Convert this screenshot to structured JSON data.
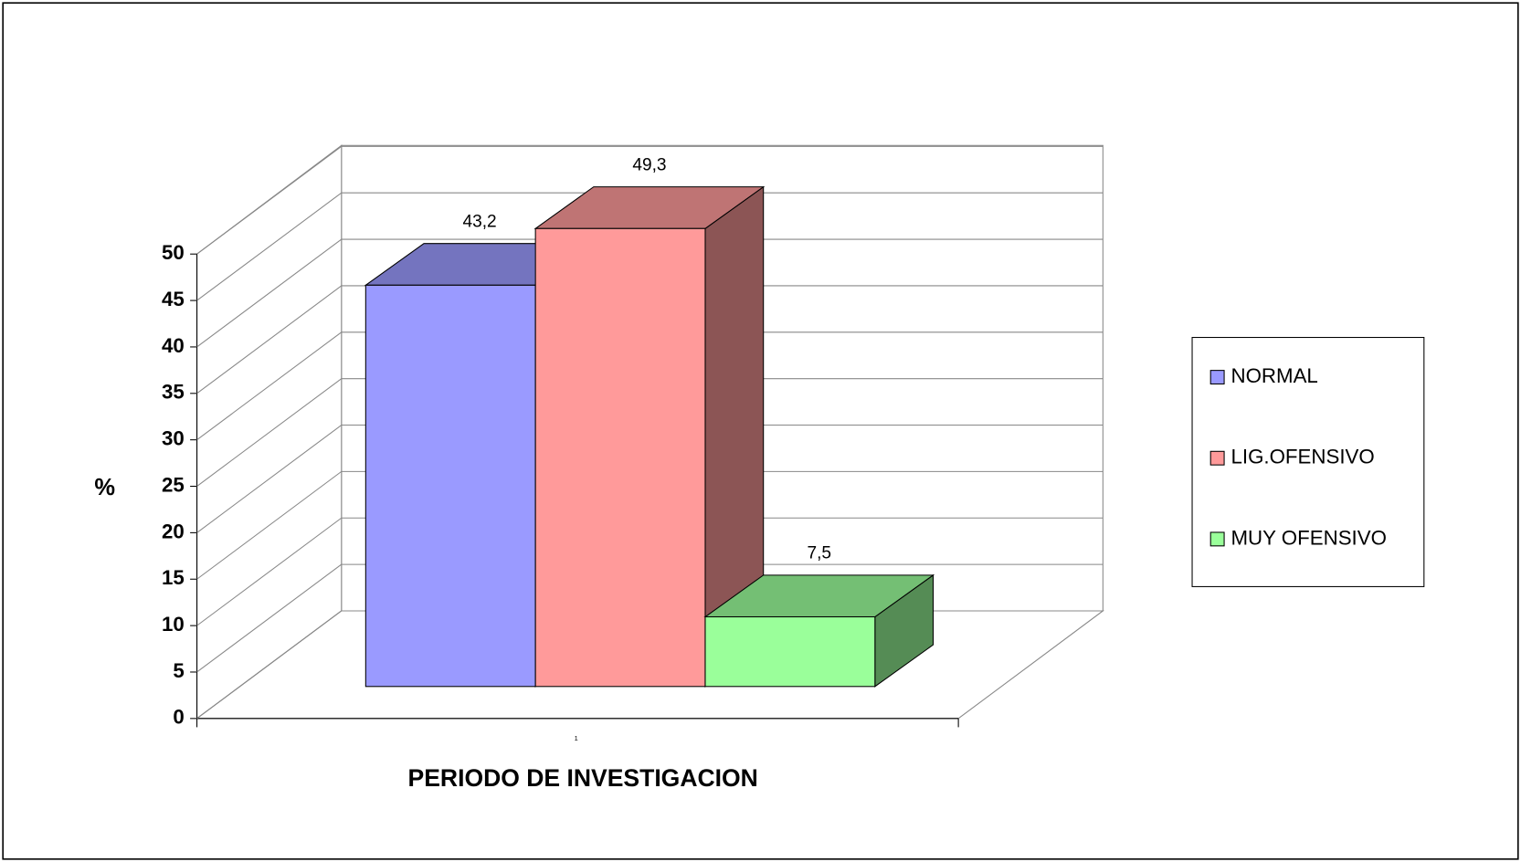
{
  "chart_data": {
    "type": "bar3d",
    "categories": [
      "1"
    ],
    "series": [
      {
        "name": "NORMAL",
        "color": "#9a9aff",
        "values": [
          43.2
        ],
        "value_labels": [
          "43,2"
        ]
      },
      {
        "name": "LIG.OFENSIVO",
        "color": "#ff9a9a",
        "values": [
          49.3
        ],
        "value_labels": [
          "49,3"
        ]
      },
      {
        "name": "MUY OFENSIVO",
        "color": "#9aff9a",
        "values": [
          7.5
        ],
        "value_labels": [
          "7,5"
        ]
      }
    ],
    "ylabel": "%",
    "xlabel": "PERIODO DE INVESTIGACION",
    "ylim": [
      0,
      50
    ],
    "yticks": [
      0,
      5,
      10,
      15,
      20,
      25,
      30,
      35,
      40,
      45,
      50
    ],
    "grid": true,
    "legend": "right"
  }
}
